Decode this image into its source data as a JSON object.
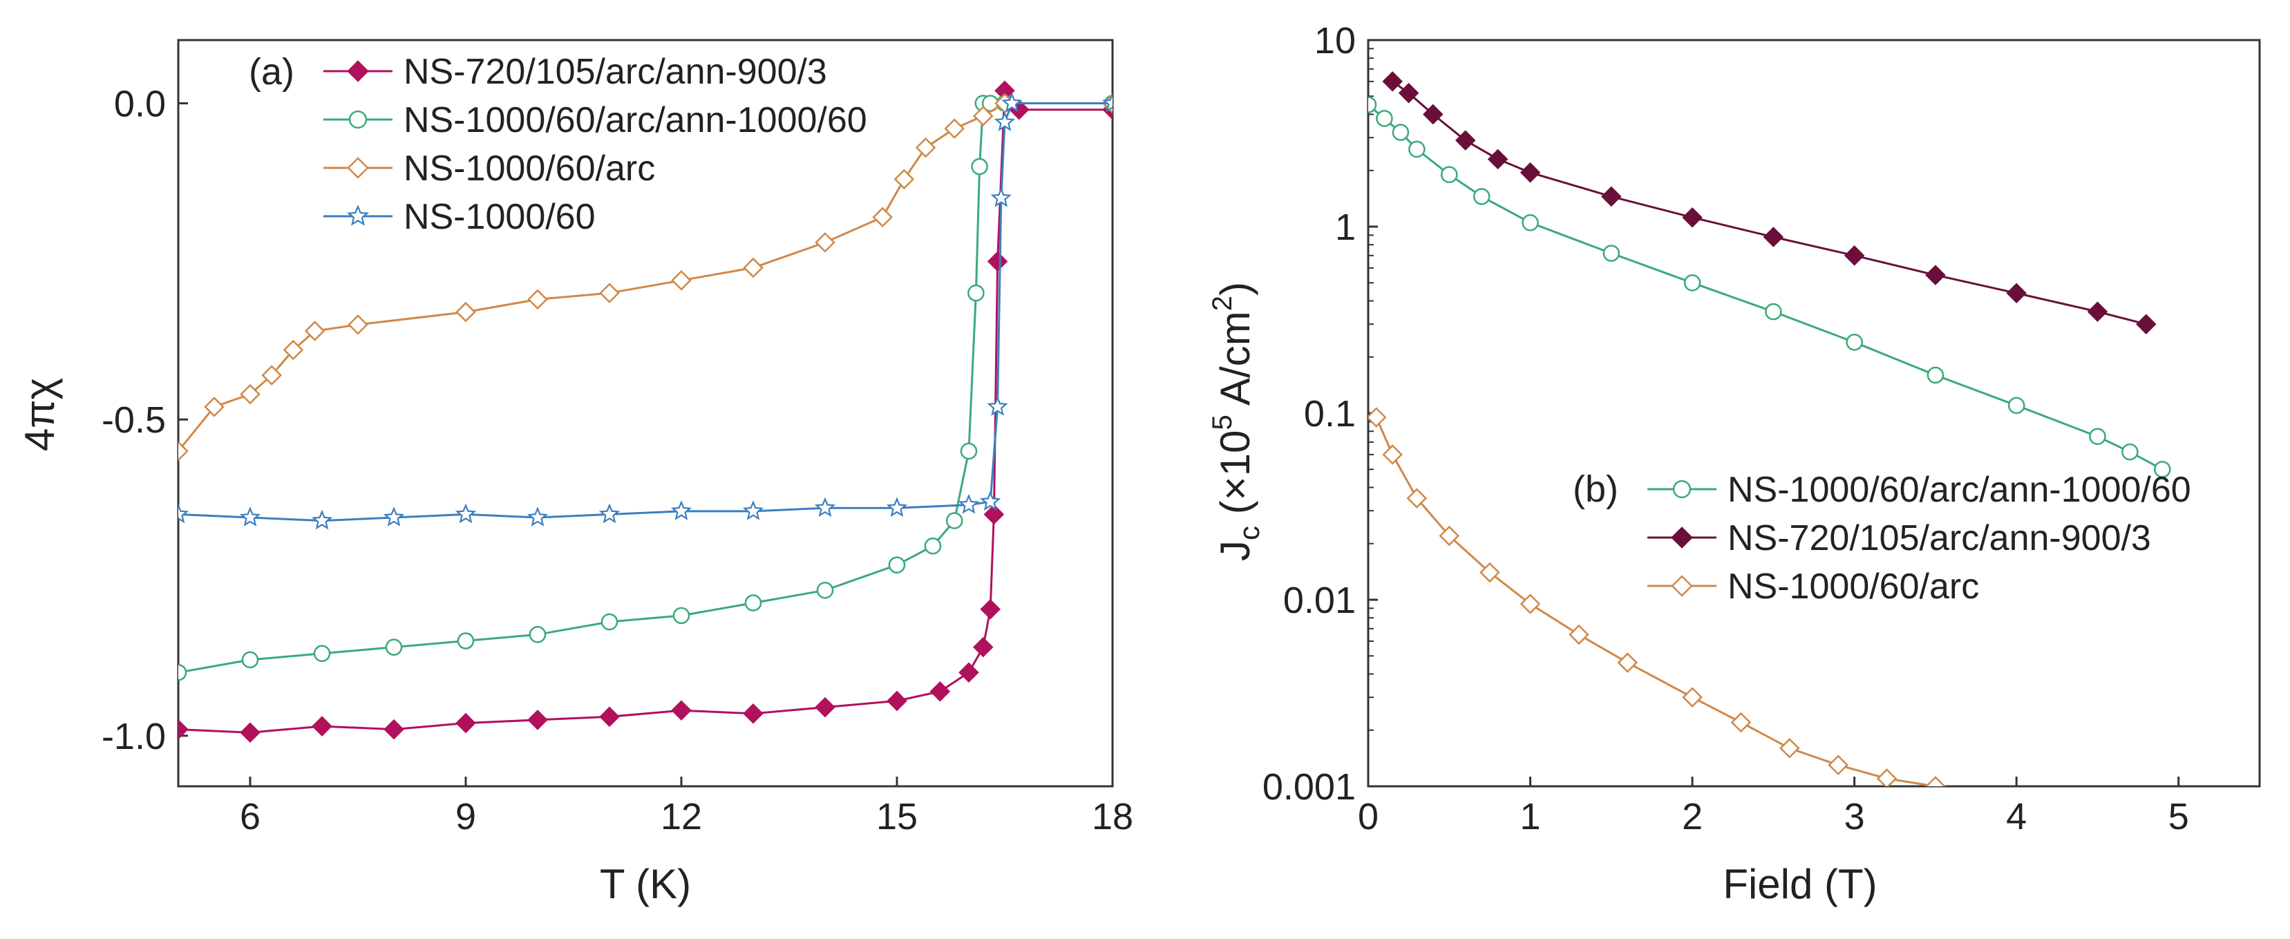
{
  "chart_data": [
    {
      "type": "scatter",
      "panel_label": "(a)",
      "xlabel": "T (K)",
      "ylabel": "4πχ",
      "xlim": [
        5,
        18
      ],
      "ylim": [
        -1.08,
        0.1
      ],
      "xticks": [
        6,
        9,
        12,
        15,
        18
      ],
      "yticks": [
        0.0,
        -0.5,
        -1.0
      ],
      "ytick_labels": [
        "0.0",
        "-0.5",
        "-1.0"
      ],
      "legend_position": "top",
      "series": [
        {
          "name": "NS-720/105/arc/ann-900/3",
          "color": "#b0105c",
          "marker": "diamond-filled",
          "x": [
            5,
            6,
            7,
            8,
            9,
            10,
            11,
            12,
            13,
            14,
            15,
            15.6,
            16.0,
            16.2,
            16.3,
            16.35,
            16.4,
            16.5,
            16.7,
            18
          ],
          "y": [
            -0.99,
            -0.995,
            -0.985,
            -0.99,
            -0.98,
            -0.975,
            -0.97,
            -0.96,
            -0.965,
            -0.955,
            -0.945,
            -0.93,
            -0.9,
            -0.86,
            -0.8,
            -0.65,
            -0.25,
            0.02,
            -0.01,
            -0.01
          ]
        },
        {
          "name": "NS-1000/60/arc/ann-1000/60",
          "color": "#3aaa78",
          "marker": "circle-open",
          "x": [
            5,
            6,
            7,
            8,
            9,
            10,
            11,
            12,
            13,
            14,
            15,
            15.5,
            15.8,
            16.0,
            16.1,
            16.15,
            16.2,
            16.3,
            16.5,
            18
          ],
          "y": [
            -0.9,
            -0.88,
            -0.87,
            -0.86,
            -0.85,
            -0.84,
            -0.82,
            -0.81,
            -0.79,
            -0.77,
            -0.73,
            -0.7,
            -0.66,
            -0.55,
            -0.3,
            -0.1,
            0.0,
            0.0,
            0.0,
            0.0
          ]
        },
        {
          "name": "NS-1000/60/arc",
          "color": "#d08848",
          "marker": "diamond-open",
          "x": [
            5,
            5.5,
            6,
            6.3,
            6.6,
            6.9,
            7.5,
            9,
            10,
            11,
            12,
            13,
            14,
            14.8,
            15.1,
            15.4,
            15.8,
            16.2,
            16.5,
            18
          ],
          "y": [
            -0.55,
            -0.48,
            -0.46,
            -0.43,
            -0.39,
            -0.36,
            -0.35,
            -0.33,
            -0.31,
            -0.3,
            -0.28,
            -0.26,
            -0.22,
            -0.18,
            -0.12,
            -0.07,
            -0.04,
            -0.02,
            0.0,
            0.0
          ]
        },
        {
          "name": "NS-1000/60",
          "color": "#3b7fc0",
          "marker": "star-open",
          "x": [
            5,
            6,
            7,
            8,
            9,
            10,
            11,
            12,
            13,
            14,
            15,
            16,
            16.3,
            16.4,
            16.45,
            16.5,
            16.6,
            18
          ],
          "y": [
            -0.65,
            -0.655,
            -0.66,
            -0.655,
            -0.65,
            -0.655,
            -0.65,
            -0.645,
            -0.645,
            -0.64,
            -0.64,
            -0.635,
            -0.63,
            -0.48,
            -0.15,
            -0.03,
            0.0,
            0.0
          ]
        }
      ]
    },
    {
      "type": "scatter",
      "panel_label": "(b)",
      "xlabel": "Field (T)",
      "ylabel_main": "J",
      "ylabel_sub": "c",
      "ylabel_mid": " (×10",
      "ylabel_sup": "5",
      "ylabel_unit": " A/cm",
      "ylabel_unit_sup": "2",
      "ylabel_close": ")",
      "yscale": "log",
      "xlim": [
        0,
        5.5
      ],
      "ylim": [
        0.001,
        10
      ],
      "xticks": [
        0,
        1,
        2,
        3,
        4,
        5
      ],
      "yticks": [
        10,
        1,
        0.1,
        0.01,
        0.001
      ],
      "ytick_labels": [
        "10",
        "1",
        "0.1",
        "0.01",
        "0.001"
      ],
      "legend_position": "center-right",
      "series": [
        {
          "name": "NS-1000/60/arc/ann-1000/60",
          "color": "#3aaa78",
          "marker": "circle-open",
          "x": [
            0,
            0.1,
            0.2,
            0.3,
            0.5,
            0.7,
            1.0,
            1.5,
            2.0,
            2.5,
            3.0,
            3.5,
            4.0,
            4.5,
            4.7,
            4.9
          ],
          "y": [
            4.5,
            3.8,
            3.2,
            2.6,
            1.9,
            1.45,
            1.05,
            0.72,
            0.5,
            0.35,
            0.24,
            0.16,
            0.11,
            0.075,
            0.062,
            0.05
          ]
        },
        {
          "name": "NS-720/105/arc/ann-900/3",
          "color": "#6a0f3a",
          "marker": "diamond-filled",
          "x": [
            0.15,
            0.25,
            0.4,
            0.6,
            0.8,
            1.0,
            1.5,
            2.0,
            2.5,
            3.0,
            3.5,
            4.0,
            4.5,
            4.8
          ],
          "y": [
            6.0,
            5.2,
            4.0,
            2.9,
            2.3,
            1.95,
            1.45,
            1.12,
            0.88,
            0.7,
            0.55,
            0.44,
            0.35,
            0.3
          ]
        },
        {
          "name": "NS-1000/60/arc",
          "color": "#d08848",
          "marker": "diamond-open",
          "x": [
            0.05,
            0.15,
            0.3,
            0.5,
            0.75,
            1.0,
            1.3,
            1.6,
            2.0,
            2.3,
            2.6,
            2.9,
            3.2,
            3.5
          ],
          "y": [
            0.095,
            0.06,
            0.035,
            0.022,
            0.014,
            0.0095,
            0.0065,
            0.0046,
            0.003,
            0.0022,
            0.0016,
            0.0013,
            0.0011,
            0.001
          ]
        }
      ]
    }
  ]
}
